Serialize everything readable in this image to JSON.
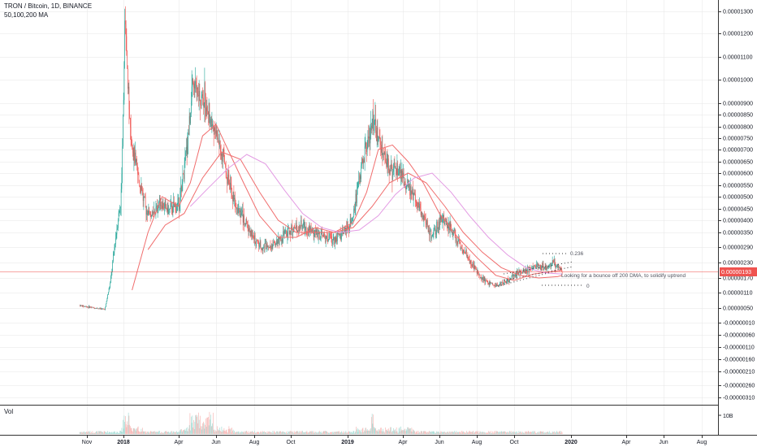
{
  "header": {
    "symbol_line": "TRON / Bitcoin, 1D, BINANCE",
    "indicator_line": "50,100,200 MA"
  },
  "volume": {
    "label": "Vol",
    "axis_label": "10B"
  },
  "annotations": {
    "fib_upper": "0.236",
    "fib_lower": "0",
    "note": "Looking for a bounce off 200 DMA, to solidify uptrend"
  },
  "price_tag": {
    "value": "0.00000193",
    "color": "#ef5350"
  },
  "colors": {
    "up": "#26a69a",
    "down": "#ef5350",
    "ma_fast": "#f06d6d",
    "ma_slow": "#e39be3",
    "grid": "#e6e6e6"
  },
  "chart_data": {
    "type": "line",
    "y_axis": {
      "ticks": [
        "0.00001300",
        "0.00001200",
        "0.00001100",
        "0.00001000",
        "0.00000900",
        "0.00000850",
        "0.00000800",
        "0.00000750",
        "0.00000700",
        "0.00000650",
        "0.00000600",
        "0.00000550",
        "0.00000500",
        "0.00000450",
        "0.00000400",
        "0.00000350",
        "0.00000290",
        "0.00000230",
        "0.00000170",
        "0.00000110",
        "0.00000050",
        "-0.00000010",
        "-0.00000060",
        "-0.00000110",
        "-0.00000160",
        "-0.00000210",
        "-0.00000260",
        "-0.00000310"
      ]
    },
    "x_axis": {
      "ticks": [
        "Nov",
        "2018",
        "Apr",
        "Jun",
        "Aug",
        "Oct",
        "2019",
        "Apr",
        "Jun",
        "Aug",
        "Oct",
        "2020",
        "Apr",
        "Jun",
        "Aug"
      ]
    },
    "series": [
      {
        "name": "price",
        "x": [
          "2017-10-20",
          "2017-11-15",
          "2017-12-01",
          "2017-12-10",
          "2017-12-20",
          "2017-12-28",
          "2018-01-04",
          "2018-01-08",
          "2018-01-16",
          "2018-01-25",
          "2018-02-06",
          "2018-02-18",
          "2018-03-01",
          "2018-03-15",
          "2018-04-01",
          "2018-04-12",
          "2018-04-25",
          "2018-05-05",
          "2018-05-14",
          "2018-05-25",
          "2018-06-10",
          "2018-06-25",
          "2018-07-15",
          "2018-08-01",
          "2018-08-14",
          "2018-09-01",
          "2018-09-15",
          "2018-10-01",
          "2018-10-20",
          "2018-11-10",
          "2018-11-25",
          "2018-12-10",
          "2018-12-25",
          "2019-01-05",
          "2019-01-12",
          "2019-01-20",
          "2019-02-01",
          "2019-02-10",
          "2019-02-20",
          "2019-03-05",
          "2019-03-20",
          "2019-04-05",
          "2019-04-20",
          "2019-05-05",
          "2019-05-20",
          "2019-06-05",
          "2019-06-20",
          "2019-07-05",
          "2019-07-20",
          "2019-08-05",
          "2019-08-20",
          "2019-09-05",
          "2019-09-20",
          "2019-10-05",
          "2019-10-20",
          "2019-11-05",
          "2019-11-20",
          "2019-12-05",
          "2019-12-18"
        ],
        "y": [
          6e-07,
          5e-07,
          4.5e-07,
          1.5e-06,
          3.5e-06,
          5e-06,
          1.3e-05,
          9.5e-06,
          7e-06,
          5.8e-06,
          4.5e-06,
          4.2e-06,
          4.8e-06,
          4.4e-06,
          4.7e-06,
          6.5e-06,
          1e-05,
          9e-06,
          9.2e-06,
          8.2e-06,
          7e-06,
          5.2e-06,
          4.1e-06,
          3.2e-06,
          2.9e-06,
          3e-06,
          3.3e-06,
          3.6e-06,
          3.8e-06,
          3.5e-06,
          3.3e-06,
          3.2e-06,
          3.5e-06,
          3.8e-06,
          4.5e-06,
          5.8e-06,
          7.2e-06,
          8.2e-06,
          7.5e-06,
          6.4e-06,
          6.1e-06,
          5.6e-06,
          5e-06,
          4.2e-06,
          3.3e-06,
          4.1e-06,
          3.7e-06,
          2.9e-06,
          2.4e-06,
          1.8e-06,
          1.5e-06,
          1.4e-06,
          1.6e-06,
          1.85e-06,
          2e-06,
          2.2e-06,
          2.1e-06,
          2.3e-06,
          1.93e-06
        ]
      },
      {
        "name": "MA 50",
        "x": [
          "2018-01-15",
          "2018-02-10",
          "2018-03-05",
          "2018-04-01",
          "2018-04-20",
          "2018-05-10",
          "2018-06-01",
          "2018-06-20",
          "2018-07-15",
          "2018-08-10",
          "2018-09-10",
          "2018-10-10",
          "2018-11-10",
          "2018-12-10",
          "2019-01-10",
          "2019-02-01",
          "2019-02-20",
          "2019-03-15",
          "2019-04-10",
          "2019-05-05",
          "2019-06-01",
          "2019-07-01",
          "2019-08-01",
          "2019-09-01",
          "2019-10-01",
          "2019-11-01",
          "2019-12-01",
          "2019-12-18"
        ],
        "y": [
          1.2e-06,
          3.5e-06,
          5e-06,
          4.6e-06,
          5.6e-06,
          7.6e-06,
          8.1e-06,
          7e-06,
          5.6e-06,
          4.2e-06,
          3.3e-06,
          3.3e-06,
          3.7e-06,
          3.5e-06,
          3.9e-06,
          5.2e-06,
          7e-06,
          7.2e-06,
          6.5e-06,
          5.6e-06,
          4.3e-06,
          3.3e-06,
          2.5e-06,
          1.8e-06,
          1.6e-06,
          1.85e-06,
          1.95e-06,
          2e-06
        ]
      },
      {
        "name": "MA 100",
        "x": [
          "2018-02-10",
          "2018-03-10",
          "2018-04-10",
          "2018-05-10",
          "2018-06-10",
          "2018-07-10",
          "2018-08-10",
          "2018-09-10",
          "2018-10-10",
          "2018-11-10",
          "2018-12-10",
          "2019-01-10",
          "2019-02-10",
          "2019-03-10",
          "2019-04-10",
          "2019-05-10",
          "2019-06-10",
          "2019-07-10",
          "2019-08-10",
          "2019-09-10",
          "2019-10-10",
          "2019-11-10",
          "2019-12-10",
          "2019-12-18"
        ],
        "y": [
          2.8e-06,
          3.8e-06,
          4.3e-06,
          5.8e-06,
          6.9e-06,
          6.6e-06,
          5.2e-06,
          4e-06,
          3.5e-06,
          3.5e-06,
          3.5e-06,
          3.7e-06,
          4.6e-06,
          5.6e-06,
          6e-06,
          5.6e-06,
          4.6e-06,
          3.5e-06,
          2.7e-06,
          2.1e-06,
          1.8e-06,
          1.7e-06,
          1.75e-06,
          1.8e-06
        ]
      },
      {
        "name": "MA 200",
        "x": [
          "2018-04-20",
          "2018-05-20",
          "2018-06-20",
          "2018-07-20",
          "2018-08-20",
          "2018-09-20",
          "2018-10-20",
          "2018-11-20",
          "2018-12-20",
          "2019-01-20",
          "2019-02-20",
          "2019-03-20",
          "2019-04-20",
          "2019-05-20",
          "2019-06-20",
          "2019-07-20",
          "2019-08-20",
          "2019-09-20",
          "2019-10-20",
          "2019-11-20",
          "2019-12-18"
        ],
        "y": [
          4.6e-06,
          5.4e-06,
          6.2e-06,
          6.8e-06,
          6.4e-06,
          5.3e-06,
          4.3e-06,
          3.7e-06,
          3.5e-06,
          3.6e-06,
          4.2e-06,
          5.1e-06,
          5.8e-06,
          6e-06,
          5.2e-06,
          4.2e-06,
          3.3e-06,
          2.6e-06,
          2.1e-06,
          1.9e-06,
          1.85e-06
        ]
      }
    ]
  }
}
